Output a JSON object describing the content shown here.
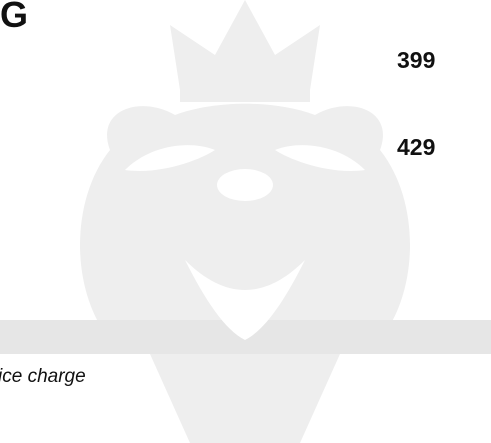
{
  "header": {
    "title": "G"
  },
  "items": [
    {
      "price": "399"
    },
    {
      "price": "429"
    }
  ],
  "note": "ice charge"
}
